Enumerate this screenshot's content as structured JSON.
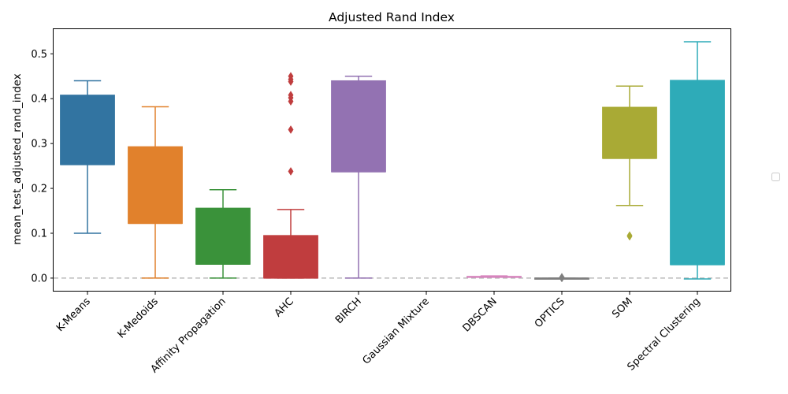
{
  "chart_data": {
    "type": "box",
    "title": "Adjusted Rand Index",
    "xlabel": "",
    "ylabel": "mean_test_adjusted_rand_index",
    "ylim": [
      -0.03,
      0.555
    ],
    "yticks": [
      "0.0",
      "0.1",
      "0.2",
      "0.3",
      "0.4",
      "0.5"
    ],
    "reference_line": {
      "y": 0.0,
      "style": "dashed",
      "color": "#bbbbbb"
    },
    "grid": false,
    "legend": {
      "placement": "right",
      "entries": []
    },
    "categories": [
      "K-Means",
      "K-Medoids",
      "Affinity Propagation",
      "AHC",
      "BIRCH",
      "Gaussian Mixture",
      "DBSCAN",
      "OPTICS",
      "SOM",
      "Spectral Clustering"
    ],
    "boxes": [
      {
        "category": "K-Means",
        "color": "#3274a1",
        "whisker_low": 0.1,
        "q1": 0.253,
        "median": 0.253,
        "q3": 0.408,
        "whisker_high": 0.44,
        "outliers": []
      },
      {
        "category": "K-Medoids",
        "color": "#e1812c",
        "whisker_low": 0.0,
        "q1": 0.122,
        "median": 0.122,
        "q3": 0.293,
        "whisker_high": 0.382,
        "outliers": []
      },
      {
        "category": "Affinity Propagation",
        "color": "#3a923a",
        "whisker_low": 0.0,
        "q1": 0.031,
        "median": 0.031,
        "q3": 0.156,
        "whisker_high": 0.197,
        "outliers": []
      },
      {
        "category": "AHC",
        "color": "#c03d3e",
        "whisker_low": 0.0,
        "q1": 0.0,
        "median": 0.0,
        "q3": 0.095,
        "whisker_high": 0.153,
        "outliers": [
          0.238,
          0.331,
          0.394,
          0.402,
          0.408,
          0.438,
          0.443,
          0.45
        ]
      },
      {
        "category": "BIRCH",
        "color": "#9372b2",
        "whisker_low": 0.0,
        "q1": 0.237,
        "median": 0.237,
        "q3": 0.44,
        "whisker_high": 0.45,
        "outliers": []
      },
      {
        "category": "Gaussian Mixture",
        "color": "#845b53",
        "whisker_low": null,
        "q1": null,
        "median": null,
        "q3": null,
        "whisker_high": null,
        "outliers": []
      },
      {
        "category": "DBSCAN",
        "color": "#d684bd",
        "whisker_low": 0.002,
        "q1": 0.002,
        "median": 0.003,
        "q3": 0.004,
        "whisker_high": 0.005,
        "outliers": []
      },
      {
        "category": "OPTICS",
        "color": "#7f7f7f",
        "whisker_low": 0.0,
        "q1": 0.0,
        "median": 0.0,
        "q3": 0.0,
        "whisker_high": 0.0,
        "outliers": [
          0.0,
          0.002
        ]
      },
      {
        "category": "SOM",
        "color": "#a9aa35",
        "whisker_low": 0.162,
        "q1": 0.267,
        "median": 0.267,
        "q3": 0.381,
        "whisker_high": 0.428,
        "outliers": [
          0.093,
          0.095
        ]
      },
      {
        "category": "Spectral Clustering",
        "color": "#2eabb8",
        "whisker_low": -0.002,
        "q1": 0.03,
        "median": 0.03,
        "q3": 0.441,
        "whisker_high": 0.527,
        "outliers": []
      }
    ]
  }
}
